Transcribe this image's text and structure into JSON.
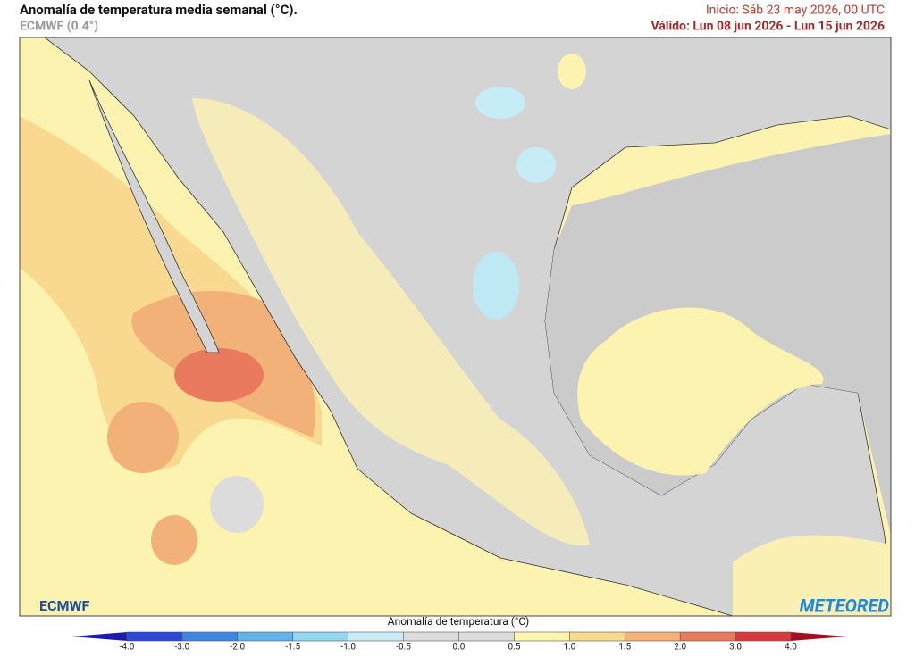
{
  "header": {
    "title": "Anomalía de temperatura media semanal (°C).",
    "subtitle": "ECMWF (0.4°)",
    "init": "Inicio: Sáb 23 may 2026, 00 UTC",
    "valid": "Válido: Lun 08 jun 2026 - Lun 15 jun 2026"
  },
  "logos": {
    "left": "ECMWF",
    "right": "METEORED"
  },
  "colorbar": {
    "label": "Anomalía de temperatura (°C)",
    "ticks": [
      {
        "value": -4,
        "label": "-4.0"
      },
      {
        "value": -3,
        "label": "-3.0"
      },
      {
        "value": -2,
        "label": "-2.0"
      },
      {
        "value": -1.5,
        "label": "-1.5"
      },
      {
        "value": -1,
        "label": "-1.0"
      },
      {
        "value": -0.5,
        "label": "-0.5"
      },
      {
        "value": 0,
        "label": "0.0"
      },
      {
        "value": 0.5,
        "label": "0.5"
      },
      {
        "value": 1,
        "label": "1.0"
      },
      {
        "value": 1.5,
        "label": "1.5"
      },
      {
        "value": 2,
        "label": "2.0"
      },
      {
        "value": 3,
        "label": "3.0"
      },
      {
        "value": 4,
        "label": "4.0"
      }
    ],
    "colors": [
      "#1c1ca8",
      "#2b48d8",
      "#3f86e2",
      "#62b3ea",
      "#95d6f0",
      "#c9edf6",
      "#dcdcdc",
      "#dcdcdc",
      "#fdf4b0",
      "#f8da90",
      "#f3b27a",
      "#ea7a5e",
      "#d63a3a",
      "#a01020"
    ]
  }
}
